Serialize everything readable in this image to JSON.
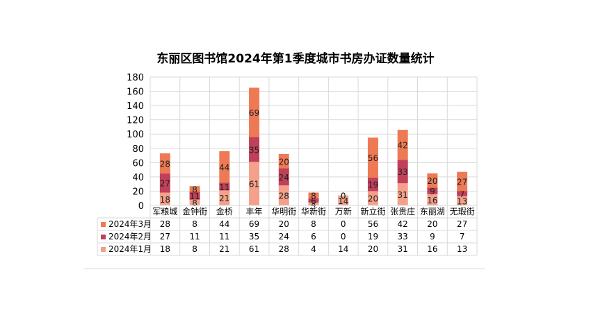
{
  "chart_data": {
    "type": "bar",
    "stacked": true,
    "title": "东丽区图书馆2024年第1季度城市书房办证数量统计",
    "categories": [
      "军粮城",
      "金钟街",
      "金桥",
      "丰年",
      "华明街",
      "华新街",
      "万新",
      "新立街",
      "张贵庄",
      "东丽湖",
      "无瑕街"
    ],
    "ylim": [
      0,
      180
    ],
    "yticks": [
      0,
      20,
      40,
      60,
      80,
      100,
      120,
      140,
      160,
      180
    ],
    "grid": true,
    "legend": "data-table-left",
    "series": [
      {
        "name": "2024年1月",
        "color": "#f4a08a",
        "values": [
          18,
          8,
          21,
          61,
          28,
          4,
          14,
          20,
          31,
          16,
          13
        ]
      },
      {
        "name": "2024年2月",
        "color": "#c0405a",
        "values": [
          27,
          11,
          11,
          35,
          24,
          6,
          0,
          19,
          33,
          9,
          7
        ]
      },
      {
        "name": "2024年3月",
        "color": "#ee7a55",
        "values": [
          28,
          8,
          44,
          69,
          20,
          8,
          0,
          56,
          42,
          20,
          27
        ]
      }
    ],
    "table_order": [
      2,
      1,
      0
    ]
  }
}
